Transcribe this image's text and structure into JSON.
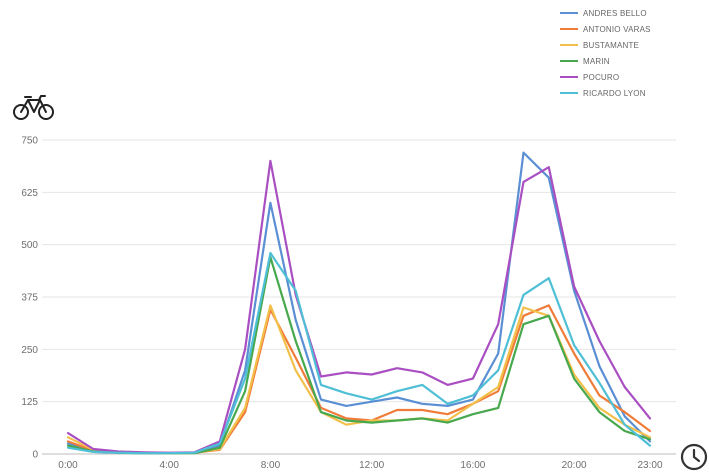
{
  "chart_data": {
    "type": "line",
    "title": "",
    "xlabel": "",
    "ylabel": "",
    "y_icon": "bicycle-icon",
    "x_icon": "clock-icon",
    "x_ticks": [
      "0:00",
      "4:00",
      "8:00",
      "12:00",
      "16:00",
      "20:00",
      "23:00"
    ],
    "x_tick_positions": [
      0,
      4,
      8,
      12,
      16,
      20,
      23
    ],
    "y_ticks": [
      0,
      125,
      250,
      375,
      500,
      625,
      750
    ],
    "xlim": [
      0,
      23
    ],
    "ylim": [
      0,
      750
    ],
    "grid": true,
    "legend_position": "top-right",
    "x": [
      0,
      1,
      2,
      3,
      4,
      5,
      6,
      7,
      8,
      9,
      10,
      11,
      12,
      13,
      14,
      15,
      16,
      17,
      18,
      19,
      20,
      21,
      22,
      23
    ],
    "series": [
      {
        "name": "ANDRES BELLO",
        "color": "#5b8fd4",
        "values": [
          25,
          5,
          3,
          2,
          2,
          3,
          20,
          200,
          600,
          320,
          130,
          115,
          125,
          135,
          120,
          115,
          130,
          240,
          720,
          660,
          390,
          210,
          90,
          30
        ]
      },
      {
        "name": "ANTONIO VARAS",
        "color": "#f07c3a",
        "values": [
          30,
          8,
          4,
          3,
          2,
          3,
          10,
          100,
          345,
          230,
          110,
          85,
          80,
          105,
          105,
          95,
          120,
          150,
          330,
          355,
          240,
          140,
          100,
          55
        ]
      },
      {
        "name": "BUSTAMANTE",
        "color": "#f2c04a",
        "values": [
          40,
          10,
          5,
          3,
          2,
          3,
          12,
          110,
          355,
          200,
          100,
          70,
          80,
          80,
          85,
          80,
          120,
          160,
          350,
          330,
          190,
          110,
          70,
          40
        ]
      },
      {
        "name": "MARIN",
        "color": "#47a84e",
        "values": [
          20,
          6,
          3,
          2,
          2,
          2,
          15,
          150,
          470,
          270,
          100,
          80,
          75,
          80,
          85,
          75,
          95,
          110,
          310,
          330,
          180,
          100,
          55,
          35
        ]
      },
      {
        "name": "POCURO",
        "color": "#a94fc2",
        "values": [
          50,
          12,
          6,
          4,
          3,
          4,
          30,
          250,
          700,
          380,
          185,
          195,
          190,
          205,
          195,
          165,
          180,
          310,
          650,
          685,
          400,
          270,
          160,
          85
        ]
      },
      {
        "name": "RICARDO LYON",
        "color": "#4fbfd6",
        "values": [
          15,
          5,
          3,
          2,
          2,
          3,
          25,
          180,
          480,
          390,
          165,
          145,
          130,
          150,
          165,
          120,
          140,
          200,
          380,
          420,
          260,
          170,
          70,
          20
        ]
      }
    ]
  }
}
